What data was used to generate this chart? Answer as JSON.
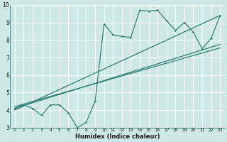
{
  "xlabel": "Humidex (Indice chaleur)",
  "bg_color": "#cde8e5",
  "grid_color": "#b0d4d0",
  "line_color": "#2e7d72",
  "xlim": [
    -0.5,
    23.5
  ],
  "ylim": [
    3,
    10
  ],
  "xticks": [
    0,
    1,
    2,
    3,
    4,
    5,
    6,
    7,
    8,
    9,
    10,
    11,
    12,
    13,
    14,
    15,
    16,
    17,
    18,
    19,
    20,
    21,
    22,
    23
  ],
  "yticks": [
    3,
    4,
    5,
    6,
    7,
    8,
    9,
    10
  ],
  "data_line": [
    [
      0,
      4.1
    ],
    [
      1,
      4.3
    ],
    [
      2,
      4.1
    ],
    [
      3,
      3.7
    ],
    [
      4,
      4.3
    ],
    [
      5,
      4.3
    ],
    [
      6,
      3.85
    ],
    [
      7,
      3.0
    ],
    [
      8,
      3.3
    ],
    [
      9,
      4.5
    ],
    [
      10,
      8.9
    ],
    [
      11,
      8.3
    ],
    [
      12,
      8.2
    ],
    [
      13,
      8.15
    ],
    [
      14,
      9.7
    ],
    [
      15,
      9.65
    ],
    [
      16,
      9.7
    ],
    [
      17,
      9.1
    ],
    [
      18,
      8.55
    ],
    [
      19,
      9.0
    ],
    [
      20,
      8.45
    ],
    [
      21,
      7.5
    ],
    [
      22,
      8.1
    ],
    [
      23,
      9.4
    ]
  ],
  "trend_line1": [
    [
      0,
      4.1
    ],
    [
      23,
      7.75
    ]
  ],
  "trend_line2": [
    [
      0,
      4.2
    ],
    [
      23,
      7.55
    ]
  ],
  "trend_line3": [
    [
      0,
      4.0
    ],
    [
      23,
      9.4
    ]
  ]
}
